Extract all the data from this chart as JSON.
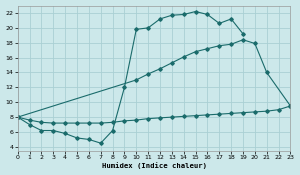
{
  "xlabel": "Humidex (Indice chaleur)",
  "background_color": "#cce8ea",
  "grid_color": "#aad0d4",
  "line_color": "#1a6b6b",
  "xlim": [
    0,
    23
  ],
  "ylim": [
    3.5,
    23
  ],
  "xticks": [
    0,
    1,
    2,
    3,
    4,
    5,
    6,
    7,
    8,
    9,
    10,
    11,
    12,
    13,
    14,
    15,
    16,
    17,
    18,
    19,
    20,
    21,
    22,
    23
  ],
  "yticks": [
    4,
    6,
    8,
    10,
    12,
    14,
    16,
    18,
    20,
    22
  ],
  "curve1_x": [
    0,
    1,
    2,
    3,
    4,
    5,
    6,
    7,
    8,
    9,
    10,
    11,
    12,
    13,
    14,
    15,
    16,
    17,
    18,
    19
  ],
  "curve1_y": [
    8.0,
    7.0,
    6.2,
    6.2,
    5.8,
    5.2,
    5.0,
    4.5,
    6.2,
    12.0,
    19.8,
    20.0,
    21.2,
    21.7,
    21.8,
    22.2,
    21.8,
    20.6,
    21.2,
    19.2
  ],
  "curve2_x": [
    0,
    10,
    11,
    12,
    13,
    14,
    15,
    16,
    17,
    18,
    19,
    20,
    21,
    23
  ],
  "curve2_y": [
    8.0,
    13.0,
    13.8,
    14.5,
    15.3,
    16.1,
    16.8,
    17.2,
    17.6,
    17.8,
    18.4,
    17.9,
    14.0,
    9.5
  ],
  "curve3_x": [
    0,
    1,
    2,
    3,
    4,
    5,
    6,
    7,
    8,
    9,
    10,
    11,
    12,
    13,
    14,
    15,
    16,
    17,
    18,
    19,
    20,
    21,
    22,
    23
  ],
  "curve3_y": [
    8.0,
    7.6,
    7.3,
    7.2,
    7.2,
    7.2,
    7.2,
    7.2,
    7.3,
    7.5,
    7.6,
    7.8,
    7.9,
    8.0,
    8.1,
    8.2,
    8.3,
    8.4,
    8.5,
    8.6,
    8.7,
    8.8,
    9.0,
    9.5
  ]
}
